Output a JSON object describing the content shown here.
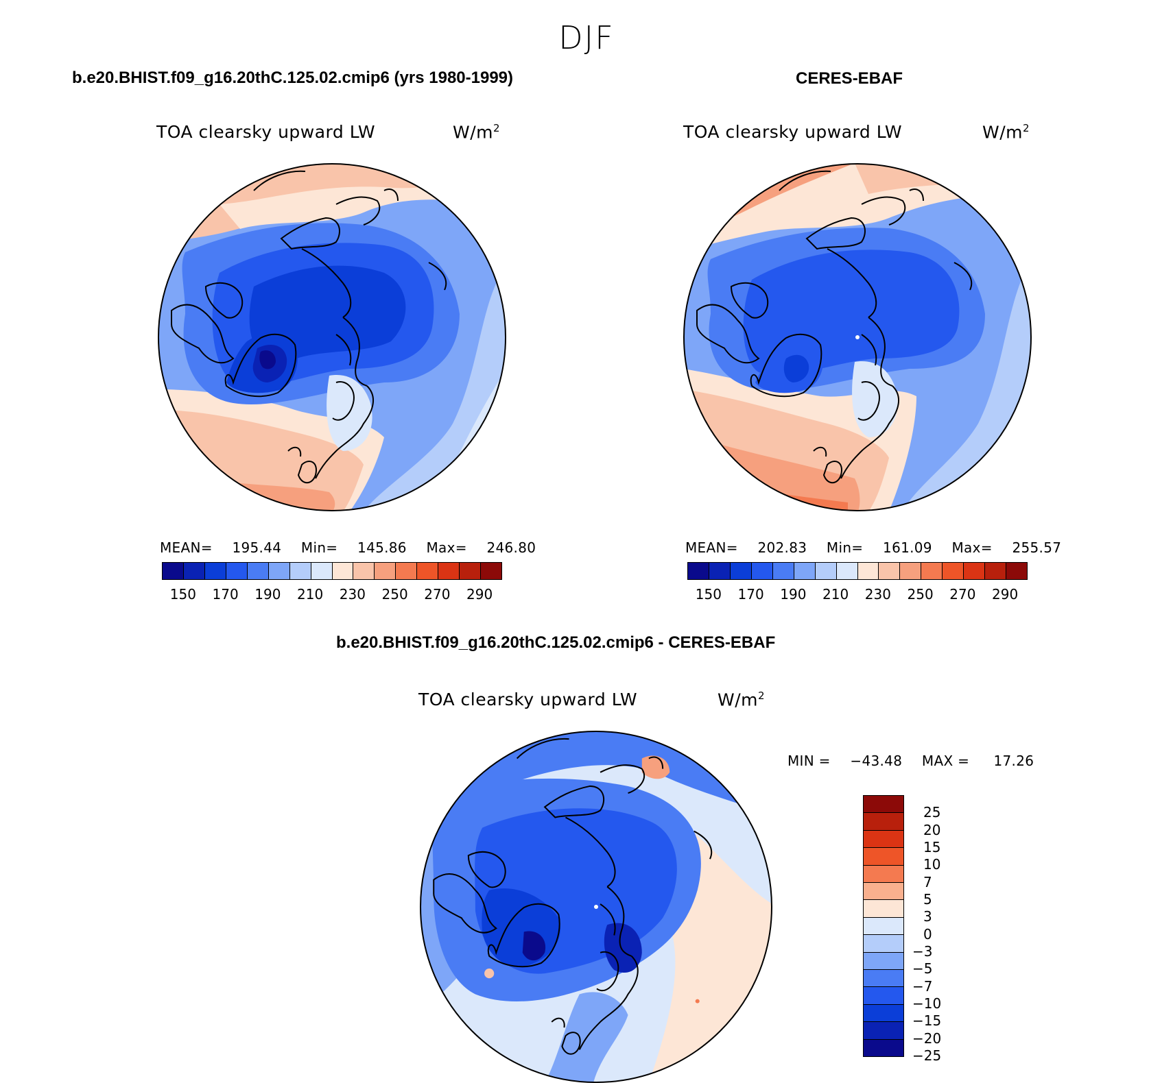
{
  "suptitle": "DJF",
  "panels": [
    {
      "heading": "b.e20.BHIST.f09_g16.20thC.125.02.cmip6 (yrs 1980-1999)",
      "variable": "TOA clearsky upward LW",
      "units": "W/m",
      "units_exp": "2",
      "stats": {
        "mean_label": "MEAN=",
        "mean": "195.44",
        "min_label": "Min=",
        "min": "145.86",
        "max_label": "Max=",
        "max": "246.80"
      },
      "map_regions": [
        "deep-blue polar core",
        "dark-blue Greenland",
        "light-blue Siberia",
        "salmon North Atlantic",
        "salmon North Pacific"
      ]
    },
    {
      "heading": "CERES-EBAF",
      "variable": "TOA clearsky upward LW",
      "units": "W/m",
      "units_exp": "2",
      "stats": {
        "mean_label": "MEAN=",
        "mean": "202.83",
        "min_label": "Min=",
        "min": "161.09",
        "max_label": "Max=",
        "max": "255.57"
      },
      "map_regions": [
        "blue polar core",
        "blue Greenland",
        "light-blue Siberia",
        "orange North Atlantic",
        "orange North Pacific"
      ]
    },
    {
      "heading": "b.e20.BHIST.f09_g16.20thC.125.02.cmip6 - CERES-EBAF",
      "variable": "TOA clearsky upward LW",
      "units": "W/m",
      "units_exp": "2",
      "stats": {
        "min_label": "MIN =",
        "min": "−43.48",
        "max_label": "MAX =",
        "max": "17.26"
      },
      "map_regions": [
        "blue polar difference",
        "dark-blue Greenland/Barents",
        "pale blue Siberia",
        "peach North Atlantic"
      ]
    }
  ],
  "colorbar_abs": {
    "colors": [
      "#0a0a8c",
      "#0a22b4",
      "#0b3ed8",
      "#2458ee",
      "#4a7cf4",
      "#7ea6f8",
      "#b4cdfa",
      "#dbe8fb",
      "#fde6d6",
      "#f9c4aa",
      "#f6a07e",
      "#f47a50",
      "#ee5528",
      "#db3414",
      "#b8200c",
      "#8c0a08"
    ],
    "labels": [
      "150",
      "170",
      "190",
      "210",
      "230",
      "250",
      "270",
      "290"
    ]
  },
  "colorbar_diff": {
    "colors_top_to_bottom": [
      "#8c0a08",
      "#b8200c",
      "#db3414",
      "#ee5528",
      "#f47a50",
      "#f9b08e",
      "#fde6d6",
      "#dbe8fb",
      "#b4cdfa",
      "#7ea6f8",
      "#4a7cf4",
      "#2458ee",
      "#0b3ed8",
      "#0a22b4",
      "#0a0a8c"
    ],
    "labels": [
      "25",
      "20",
      "15",
      "10",
      "7",
      "5",
      "3",
      "0",
      "−3",
      "−5",
      "−7",
      "−10",
      "−15",
      "−20",
      "−25"
    ]
  },
  "colors": {
    "ocean_warm": "#f9c4aa",
    "ocean_warmer": "#f6a07e",
    "cold_core": "#0b3ed8",
    "mid_blue": "#4a7cf4",
    "light_blue": "#b4cdfa",
    "pale": "#dbe8fb",
    "coast": "#000000"
  }
}
